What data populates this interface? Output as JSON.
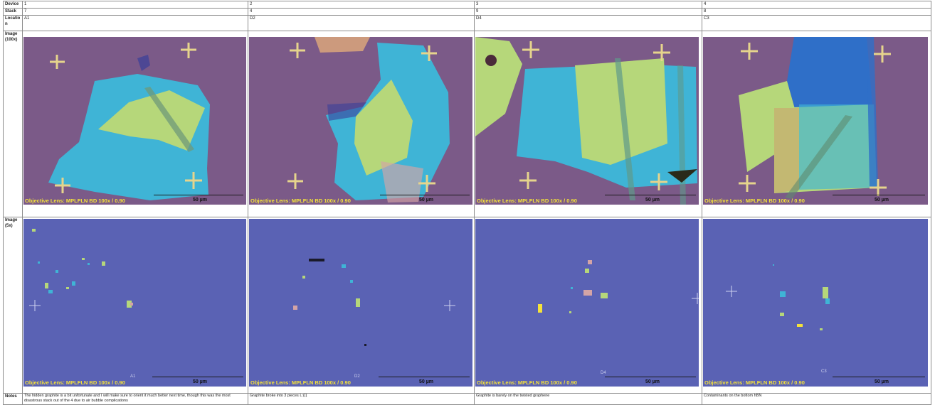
{
  "labels": {
    "device": "Device",
    "stack": "Stack",
    "location": "Locatio\nn",
    "image_100x": "Image\n(100x)",
    "image_5x": "Image\n(5x)",
    "notes": "Notes"
  },
  "columns": [
    {
      "device": "1",
      "stack": "7",
      "location": "A1",
      "notes": "The hidden graphite is a bit unfortunate and I will make sure to orient it much better next time, though this was the most disastrous stack out of the 4 due to air bubble complications",
      "img100": {
        "lens": "Objective Lens:  MPLFLN BD 100x / 0.90",
        "scale": "50 µm"
      },
      "img5": {
        "lens": "Objective Lens:  MPLFLN BD 100x / 0.90",
        "scale": "50 µm",
        "tag": "A1"
      }
    },
    {
      "device": "2",
      "stack": "4",
      "location": "D2",
      "notes": "Graphite broke into 3 pieces L:(((",
      "img100": {
        "lens": "Objective Lens:  MPLFLN BD 100x / 0.90",
        "scale": "50 µm"
      },
      "img5": {
        "lens": "Objective Lens:  MPLFLN BD 100x / 0.90",
        "scale": "50 µm",
        "tag": "D2"
      }
    },
    {
      "device": "3",
      "stack": "9",
      "location": "D4",
      "notes": "Graphite is barely on the twisted graphene",
      "img100": {
        "lens": "Objective Lens:  MPLFLN BD 100x / 0.90",
        "scale": "50 µm"
      },
      "img5": {
        "lens": "Objective Lens:  MPLFLN BD 100x / 0.90",
        "scale": "50 µm",
        "tag": "D4"
      }
    },
    {
      "device": "4",
      "stack": "8",
      "location": "C3",
      "notes": "Contaminants on the bottom hBN",
      "img100": {
        "lens": "Objective Lens:  MPLFLN BD 100x / 0.90",
        "scale": "50 µm"
      },
      "img5": {
        "lens": "Objective Lens:  MPLFLN BD 100x / 0.90",
        "scale": "50 µm",
        "tag": "C3"
      }
    }
  ],
  "colors": {
    "substrate_100x": "#7b5a88",
    "substrate_5x": "#5a62b4",
    "hbn": "#3fb4d6",
    "graphene": "#b6d77a",
    "lens_text": "#f5e23a",
    "marker": "#e6d48c"
  }
}
